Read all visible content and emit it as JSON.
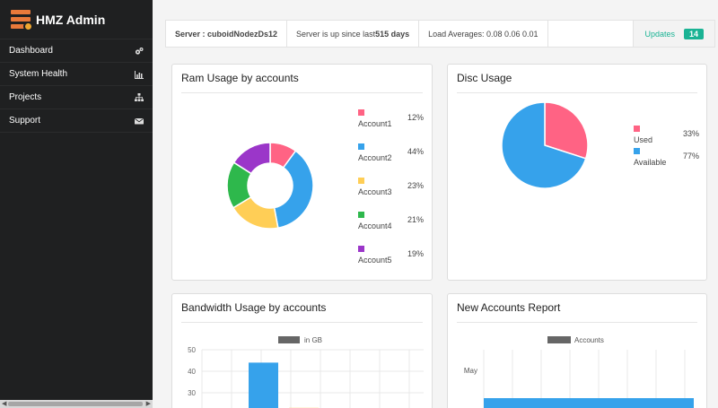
{
  "app": {
    "brand": "HMZ Admin"
  },
  "sidebar": {
    "items": [
      {
        "label": "Dashboard",
        "icon": "gears-icon"
      },
      {
        "label": "System Health",
        "icon": "bar-chart-icon"
      },
      {
        "label": "Projects",
        "icon": "sitemap-icon"
      },
      {
        "label": "Support",
        "icon": "envelope-icon"
      }
    ]
  },
  "topbar": {
    "server_label": "Server : cuboidNodezDs12",
    "uptime_prefix": "Server is up since last",
    "uptime_value": "515 days",
    "load_averages": "Load Averages: 0.08 0.06 0.01",
    "updates_label": "Updates",
    "updates_count": "14"
  },
  "ram_panel": {
    "title": "Ram Usage by accounts",
    "chart_data": {
      "type": "pie",
      "donut": true,
      "categories": [
        "Account1",
        "Account2",
        "Account3",
        "Account4",
        "Account5"
      ],
      "values": [
        12,
        44,
        23,
        21,
        19
      ],
      "value_labels": [
        "12%",
        "44%",
        "23%",
        "21%",
        "19%"
      ],
      "colors": [
        "#ff6384",
        "#36a2eb",
        "#ffce56",
        "#2eb84c",
        "#9b36c9"
      ],
      "legend": "right"
    }
  },
  "disc_panel": {
    "title": "Disc Usage",
    "chart_data": {
      "type": "pie",
      "categories": [
        "Used",
        "Available"
      ],
      "values": [
        33,
        77
      ],
      "value_labels": [
        "33%",
        "77%"
      ],
      "colors": [
        "#ff6384",
        "#36a2eb"
      ],
      "legend": "right"
    }
  },
  "bandwidth_panel": {
    "title": "Bandwidth Usage by accounts",
    "chart_data": {
      "type": "bar",
      "legend_label": "in GB",
      "legend": "top",
      "yticks": [
        50,
        40,
        30
      ],
      "ylim": [
        20,
        50
      ],
      "series": [
        {
          "name": "in GB",
          "values": [
            44,
            23
          ],
          "colors": [
            "#36a2eb",
            "#ffce56"
          ]
        }
      ],
      "grid": true
    }
  },
  "accounts_panel": {
    "title": "New Accounts Report",
    "chart_data": {
      "type": "bar",
      "orientation": "horizontal",
      "legend_label": "Accounts",
      "legend": "top",
      "categories": [
        "May"
      ],
      "series": [
        {
          "name": "Accounts",
          "color": "#36a2eb"
        }
      ],
      "grid": true
    }
  }
}
